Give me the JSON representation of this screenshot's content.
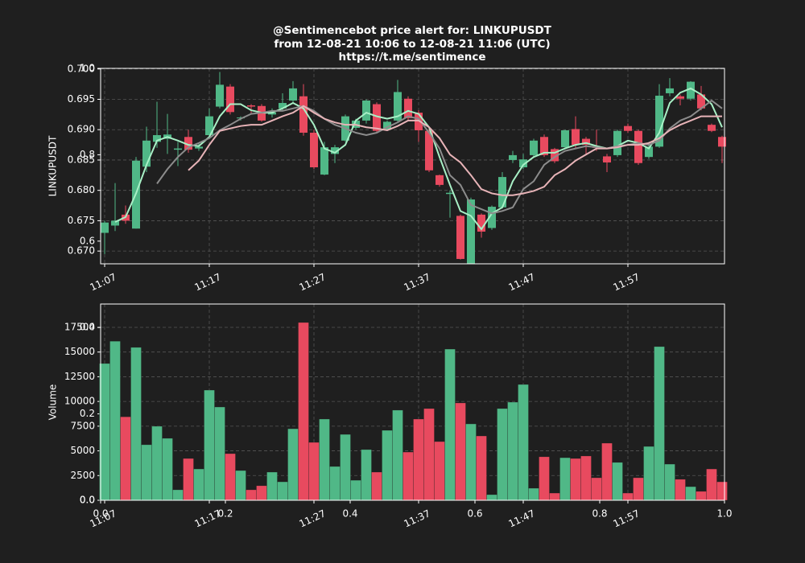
{
  "chart_data": [
    {
      "type": "candlestick",
      "title": [
        "@Sentimencebot price alert for: LINKUPUSDT",
        "from 12-08-21 10:06 to 12-08-21 11:06 (UTC)",
        "https://t.me/sentimence"
      ],
      "ylabel": "LINKUPUSDT",
      "categories": [
        "11:07",
        null,
        null,
        null,
        null,
        null,
        null,
        null,
        null,
        null,
        "11:17",
        null,
        null,
        null,
        null,
        null,
        null,
        null,
        null,
        null,
        "11:27",
        null,
        null,
        null,
        null,
        null,
        null,
        null,
        null,
        null,
        "11:37",
        null,
        null,
        null,
        null,
        null,
        null,
        null,
        null,
        null,
        "11:47",
        null,
        null,
        null,
        null,
        null,
        null,
        null,
        null,
        null,
        "11:57",
        null,
        null,
        null,
        null,
        null,
        null,
        null,
        null,
        null
      ],
      "open": [
        0.673,
        0.6742,
        0.676,
        0.6737,
        0.6839,
        0.688,
        0.6885,
        0.6867,
        0.6888,
        0.6869,
        0.6891,
        0.6938,
        0.6971,
        0.6919,
        0.694,
        0.6939,
        0.6925,
        0.6935,
        0.6948,
        0.6955,
        0.6895,
        0.6826,
        0.686,
        0.6882,
        0.6903,
        0.6915,
        0.6942,
        0.69,
        0.6915,
        0.6951,
        0.6928,
        0.6898,
        0.6825,
        0.6794,
        0.6758,
        0.6679,
        0.676,
        0.6738,
        0.6772,
        0.685,
        0.6838,
        0.6858,
        0.6888,
        0.6868,
        0.6871,
        0.6901,
        0.6885,
        0.6872,
        0.6856,
        0.6858,
        0.6906,
        0.6898,
        0.6855,
        0.6872,
        0.696,
        0.6955,
        0.6951,
        0.6958,
        0.6908,
        0.6888
      ],
      "high": [
        0.675,
        0.6812,
        0.6775,
        0.6855,
        0.6905,
        0.6946,
        0.6926,
        0.688,
        0.69,
        0.6878,
        0.6935,
        0.6995,
        0.6975,
        0.6922,
        0.6942,
        0.6942,
        0.6935,
        0.696,
        0.698,
        0.6975,
        0.69,
        0.688,
        0.6875,
        0.6925,
        0.6918,
        0.695,
        0.6945,
        0.6915,
        0.6982,
        0.6955,
        0.6932,
        0.6905,
        0.6826,
        0.68,
        0.676,
        0.6788,
        0.6762,
        0.6775,
        0.683,
        0.6865,
        0.686,
        0.6885,
        0.6892,
        0.687,
        0.69,
        0.6922,
        0.6888,
        0.69,
        0.686,
        0.69,
        0.691,
        0.69,
        0.688,
        0.6975,
        0.6985,
        0.6958,
        0.698,
        0.6972,
        0.691,
        0.689
      ],
      "low": [
        0.6695,
        0.6733,
        0.6745,
        0.6737,
        0.683,
        0.687,
        0.686,
        0.684,
        0.6862,
        0.6865,
        0.6885,
        0.6935,
        0.6925,
        0.6915,
        0.6925,
        0.6913,
        0.692,
        0.6932,
        0.6945,
        0.689,
        0.6835,
        0.6825,
        0.6845,
        0.688,
        0.69,
        0.691,
        0.6895,
        0.6898,
        0.6912,
        0.6915,
        0.688,
        0.683,
        0.6806,
        0.6755,
        0.6686,
        0.6679,
        0.6722,
        0.6735,
        0.677,
        0.6845,
        0.6835,
        0.6855,
        0.6855,
        0.6845,
        0.6868,
        0.687,
        0.6858,
        0.6865,
        0.683,
        0.6855,
        0.6895,
        0.6842,
        0.6852,
        0.687,
        0.6955,
        0.694,
        0.6948,
        0.6932,
        0.6896,
        0.6845
      ],
      "close": [
        0.6747,
        0.675,
        0.675,
        0.6849,
        0.6882,
        0.6891,
        0.6892,
        0.6869,
        0.6867,
        0.6872,
        0.6922,
        0.6974,
        0.6929,
        0.692,
        0.6938,
        0.6915,
        0.6928,
        0.6944,
        0.6968,
        0.6895,
        0.6838,
        0.6871,
        0.6871,
        0.6922,
        0.6915,
        0.6948,
        0.6898,
        0.6913,
        0.6962,
        0.6919,
        0.6899,
        0.6833,
        0.6809,
        0.6796,
        0.6687,
        0.6785,
        0.6732,
        0.6773,
        0.6822,
        0.6858,
        0.6851,
        0.6882,
        0.6858,
        0.6848,
        0.6899,
        0.6875,
        0.6875,
        0.687,
        0.6846,
        0.6898,
        0.6898,
        0.6845,
        0.6872,
        0.6956,
        0.6968,
        0.6951,
        0.6979,
        0.6935,
        0.6898,
        0.6872
      ],
      "up_color": "#50b887",
      "down_color": "#e84a5f",
      "series": [
        {
          "color": "#a8f0c6",
          "values": [
            null,
            0.6748,
            0.6756,
            0.6795,
            0.6842,
            0.6882,
            0.6888,
            0.6882,
            0.6875,
            0.6873,
            0.6888,
            0.6922,
            0.6942,
            0.6942,
            0.6932,
            0.6928,
            0.6928,
            0.6935,
            0.6944,
            0.6935,
            0.6908,
            0.6869,
            0.6862,
            0.6875,
            0.6915,
            0.6928,
            0.6922,
            0.6918,
            0.6922,
            0.6931,
            0.6926,
            0.6904,
            0.6855,
            0.6809,
            0.6766,
            0.6758,
            0.6736,
            0.6762,
            0.6772,
            0.6815,
            0.6842,
            0.6855,
            0.6862,
            0.6862,
            0.6869,
            0.6875,
            0.6878,
            0.6873,
            0.6869,
            0.6873,
            0.6882,
            0.6878,
            0.6869,
            0.6895,
            0.6944,
            0.6961,
            0.6968,
            0.6958,
            0.6942,
            0.6904
          ]
        },
        {
          "color": "#8c8c8c",
          "values": [
            null,
            null,
            null,
            null,
            null,
            0.6811,
            0.6835,
            0.6855,
            0.6871,
            0.6878,
            0.6886,
            0.6899,
            0.6908,
            0.6918,
            0.6926,
            0.6928,
            0.6931,
            0.6931,
            0.6935,
            0.6939,
            0.6931,
            0.6918,
            0.6908,
            0.6902,
            0.6895,
            0.6891,
            0.6895,
            0.6904,
            0.6912,
            0.6922,
            0.6918,
            0.6895,
            0.6869,
            0.6825,
            0.6809,
            0.6776,
            0.6769,
            0.6762,
            0.6766,
            0.6772,
            0.6802,
            0.6815,
            0.6842,
            0.6855,
            0.6865,
            0.6869,
            0.6873,
            0.6871,
            0.6869,
            0.6873,
            0.6875,
            0.6878,
            0.6875,
            0.6882,
            0.6902,
            0.6915,
            0.6922,
            0.6935,
            0.6948,
            0.6935
          ]
        },
        {
          "color": "#e8b4b8",
          "values": [
            null,
            null,
            null,
            null,
            null,
            null,
            null,
            null,
            0.6833,
            0.6849,
            0.6875,
            0.6898,
            0.6902,
            0.6906,
            0.6908,
            0.6908,
            0.6915,
            0.6922,
            0.6928,
            0.6939,
            0.6928,
            0.6918,
            0.6912,
            0.6908,
            0.6908,
            0.6904,
            0.6902,
            0.6899,
            0.6906,
            0.6915,
            0.6915,
            0.6904,
            0.6886,
            0.6859,
            0.6846,
            0.6825,
            0.6802,
            0.6795,
            0.6792,
            0.6792,
            0.6795,
            0.6799,
            0.6806,
            0.6825,
            0.6835,
            0.6849,
            0.6859,
            0.6869,
            0.6869,
            0.6871,
            0.6875,
            0.6875,
            0.6878,
            0.6886,
            0.6899,
            0.6908,
            0.6915,
            0.6922,
            0.6922,
            0.6922
          ]
        }
      ],
      "ylim": [
        0.6679,
        0.7001
      ],
      "yticks": [
        {
          "value": 0.67,
          "label": "0.670"
        },
        0.675,
        {
          "value": 0.68,
          "label": "0.680"
        },
        0.685,
        {
          "value": 0.69,
          "label": "0.690"
        },
        0.695,
        {
          "value": 0.7,
          "label": "0.700"
        }
      ],
      "grid": true
    },
    {
      "type": "bar",
      "ylabel": "Volume",
      "categories": [
        "11:07",
        null,
        null,
        null,
        null,
        null,
        null,
        null,
        null,
        null,
        "11:17",
        null,
        null,
        null,
        null,
        null,
        null,
        null,
        null,
        null,
        "11:27",
        null,
        null,
        null,
        null,
        null,
        null,
        null,
        null,
        null,
        "11:37",
        null,
        null,
        null,
        null,
        null,
        null,
        null,
        null,
        null,
        "11:47",
        null,
        null,
        null,
        null,
        null,
        null,
        null,
        null,
        null,
        "11:57",
        null,
        null,
        null,
        null,
        null,
        null,
        null,
        null,
        null
      ],
      "values": [
        13840,
        16100,
        8450,
        15470,
        5620,
        7490,
        6270,
        1060,
        4230,
        3170,
        11150,
        9440,
        4720,
        3010,
        1060,
        1470,
        2850,
        1870,
        7240,
        17990,
        5860,
        8220,
        3420,
        6670,
        2030,
        5130,
        2850,
        7080,
        9120,
        4880,
        8220,
        9280,
        5940,
        15300,
        9850,
        7730,
        6510,
        570,
        9280,
        9930,
        11720,
        1220,
        4400,
        730,
        4310,
        4230,
        4480,
        2280,
        5780,
        3830,
        730,
        2280,
        5450,
        15550,
        3660,
        2120,
        1380,
        900,
        3170,
        1870
      ],
      "ylim": [
        0,
        19860
      ],
      "yticks": [
        {
          "value": 0,
          "label": "0.0"
        },
        2500,
        5000,
        7500,
        10000,
        12500,
        15000,
        17500
      ],
      "grid": true
    },
    {
      "type": "axes",
      "xlim": [
        0,
        1
      ],
      "ylim": [
        0,
        1
      ],
      "xticks": [
        {
          "value": 0,
          "label": "0.0"
        },
        0.2,
        0.4,
        0.6,
        0.8,
        {
          "value": 1,
          "label": "1.0"
        }
      ],
      "yticks": [
        {
          "value": 0,
          "label": "0.0"
        },
        0.2,
        0.4,
        0.6,
        0.8,
        {
          "value": 1,
          "label": "1.0"
        }
      ]
    }
  ]
}
